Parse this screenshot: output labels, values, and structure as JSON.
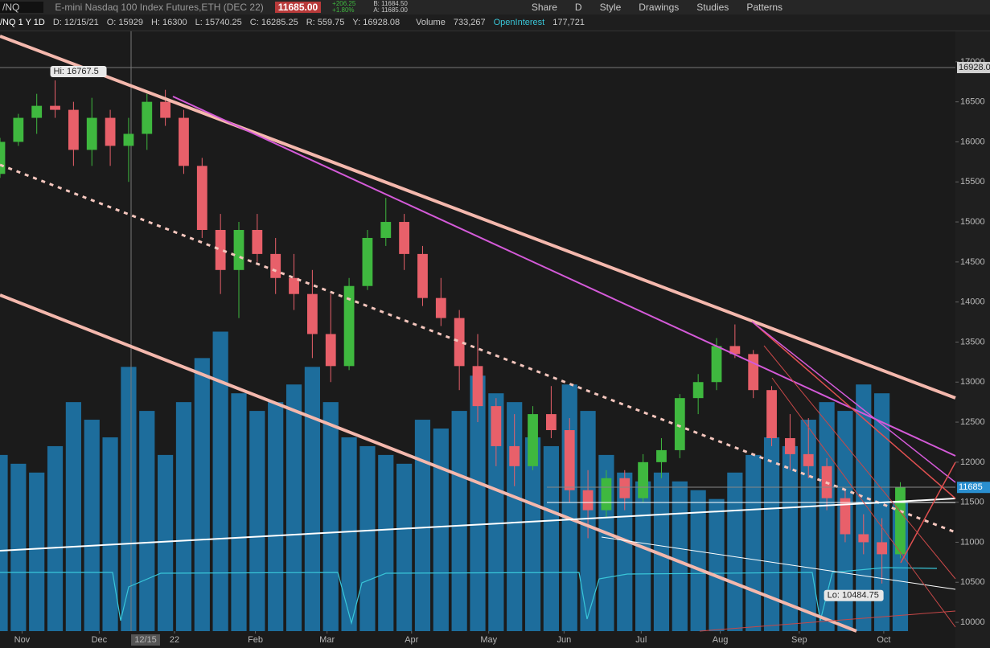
{
  "toolbar": {
    "symbol": "/NQ",
    "description": "E-mini Nasdaq 100 Index Futures,ETH (DEC 22)",
    "last": "11685.00",
    "change": "+206.25",
    "change_pct": "+1.80%",
    "bid": "B: 11684.50",
    "ask": "A: 11685.00",
    "buttons": [
      "Share",
      "D",
      "Style",
      "Drawings",
      "Studies",
      "Patterns"
    ]
  },
  "info_bar": {
    "title": "/NQ 1 Y 1D",
    "fields": [
      "D: 12/15/21",
      "O: 15929",
      "H: 16300",
      "L: 15740.25",
      "C: 16285.25",
      "R: 559.75",
      "Y: 16928.08"
    ],
    "volume_label": "Volume",
    "volume_value": "733,267",
    "oi_label": "OpenInterest",
    "oi_value": "177,721"
  },
  "chart_data": {
    "type": "candlestick",
    "x": [
      0,
      1,
      2,
      3,
      4,
      5,
      6,
      7,
      8,
      9,
      10,
      11,
      12,
      13,
      14,
      15,
      16,
      17,
      18,
      19,
      20,
      21,
      22,
      23,
      24,
      25,
      26,
      27,
      28,
      29,
      30,
      31,
      32,
      33,
      34,
      35,
      36,
      37,
      38,
      39,
      40,
      41,
      42,
      43,
      44,
      45,
      46,
      47,
      48,
      49
    ],
    "open": [
      15600,
      16000,
      16300,
      16450,
      16400,
      15900,
      16300,
      15950,
      16100,
      16500,
      16300,
      15700,
      14900,
      14400,
      14900,
      14600,
      14300,
      14100,
      13600,
      13200,
      14200,
      14800,
      15000,
      14600,
      14050,
      13800,
      13200,
      12700,
      12200,
      11950,
      12600,
      12400,
      11650,
      11400,
      11800,
      11550,
      12000,
      12150,
      12800,
      13000,
      13450,
      13350,
      12900,
      12300,
      12100,
      11950,
      11550,
      11100,
      11000,
      10850
    ],
    "high": [
      16050,
      16350,
      16600,
      16767.5,
      16500,
      16550,
      16400,
      16300,
      16600,
      16650,
      16400,
      15800,
      15100,
      15000,
      15100,
      14800,
      14600,
      14400,
      14100,
      14300,
      14900,
      15300,
      15100,
      14700,
      14300,
      13900,
      13600,
      12800,
      12600,
      12700,
      12950,
      12550,
      11900,
      11900,
      11900,
      12100,
      12300,
      12850,
      13100,
      13550,
      13720,
      13400,
      12950,
      12600,
      12550,
      12050,
      11650,
      11350,
      11300,
      11750
    ],
    "low": [
      15550,
      15950,
      16100,
      16300,
      15700,
      15700,
      15700,
      15500,
      15900,
      16200,
      15600,
      14800,
      14100,
      13800,
      14500,
      14100,
      13900,
      13300,
      13000,
      13150,
      14150,
      14700,
      14400,
      13950,
      13700,
      12900,
      12500,
      11950,
      11700,
      11900,
      12300,
      11500,
      11050,
      11300,
      11400,
      11500,
      11800,
      12050,
      12600,
      12900,
      13300,
      12800,
      12200,
      11900,
      11800,
      11400,
      11000,
      10850,
      10484.75,
      10800
    ],
    "close": [
      16000,
      16300,
      16450,
      16400,
      15900,
      16300,
      15950,
      16100,
      16500,
      16300,
      15700,
      14900,
      14400,
      14900,
      14600,
      14300,
      14100,
      13600,
      13200,
      14200,
      14800,
      15000,
      14600,
      14050,
      13800,
      13200,
      12700,
      12200,
      11950,
      12600,
      12400,
      11650,
      11400,
      11800,
      11550,
      12000,
      12150,
      12800,
      13000,
      13450,
      13350,
      12900,
      12300,
      12100,
      11950,
      11550,
      11100,
      11000,
      10850,
      11685
    ],
    "volume": [
      1000000,
      950000,
      900000,
      1050000,
      1300000,
      1200000,
      1100000,
      1500000,
      1250000,
      1000000,
      1300000,
      1550000,
      1700000,
      1350000,
      1250000,
      1300000,
      1400000,
      1500000,
      1300000,
      1100000,
      1050000,
      1000000,
      950000,
      1200000,
      1150000,
      1250000,
      1450000,
      1350000,
      1300000,
      1100000,
      1050000,
      1400000,
      1250000,
      1000000,
      900000,
      850000,
      900000,
      850000,
      800000,
      750000,
      900000,
      1000000,
      1100000,
      1050000,
      1200000,
      1300000,
      1250000,
      1400000,
      1350000,
      733267
    ],
    "xlim": [
      0,
      52
    ],
    "xticks": [
      {
        "value": 1.2,
        "label": "Nov"
      },
      {
        "value": 5.4,
        "label": "Dec"
      },
      {
        "value": 9.5,
        "label": "22"
      },
      {
        "value": 13.9,
        "label": "Feb"
      },
      {
        "value": 17.8,
        "label": "Mar"
      },
      {
        "value": 22.4,
        "label": "Apr"
      },
      {
        "value": 26.6,
        "label": "May"
      },
      {
        "value": 30.7,
        "label": "Jun"
      },
      {
        "value": 34.9,
        "label": "Jul"
      },
      {
        "value": 39.2,
        "label": "Aug"
      },
      {
        "value": 43.5,
        "label": "Sep"
      },
      {
        "value": 48.1,
        "label": "Oct"
      }
    ],
    "ylim": [
      9890,
      17370
    ],
    "yticks": [
      10000,
      10500,
      11000,
      11500,
      12000,
      12500,
      13000,
      13500,
      14000,
      14500,
      15000,
      15500,
      16000,
      16500,
      17000
    ],
    "volume_lim": [
      0,
      3400000
    ],
    "price_markers": [
      16928.08,
      11685
    ],
    "high_label": "Hi: 16767.5",
    "low_label": "Lo: 10484.75",
    "crosshair_label": "12/15",
    "colors": {
      "up": "#3fb83f",
      "down": "#e8606a",
      "volume": "#1d6d9c"
    }
  }
}
